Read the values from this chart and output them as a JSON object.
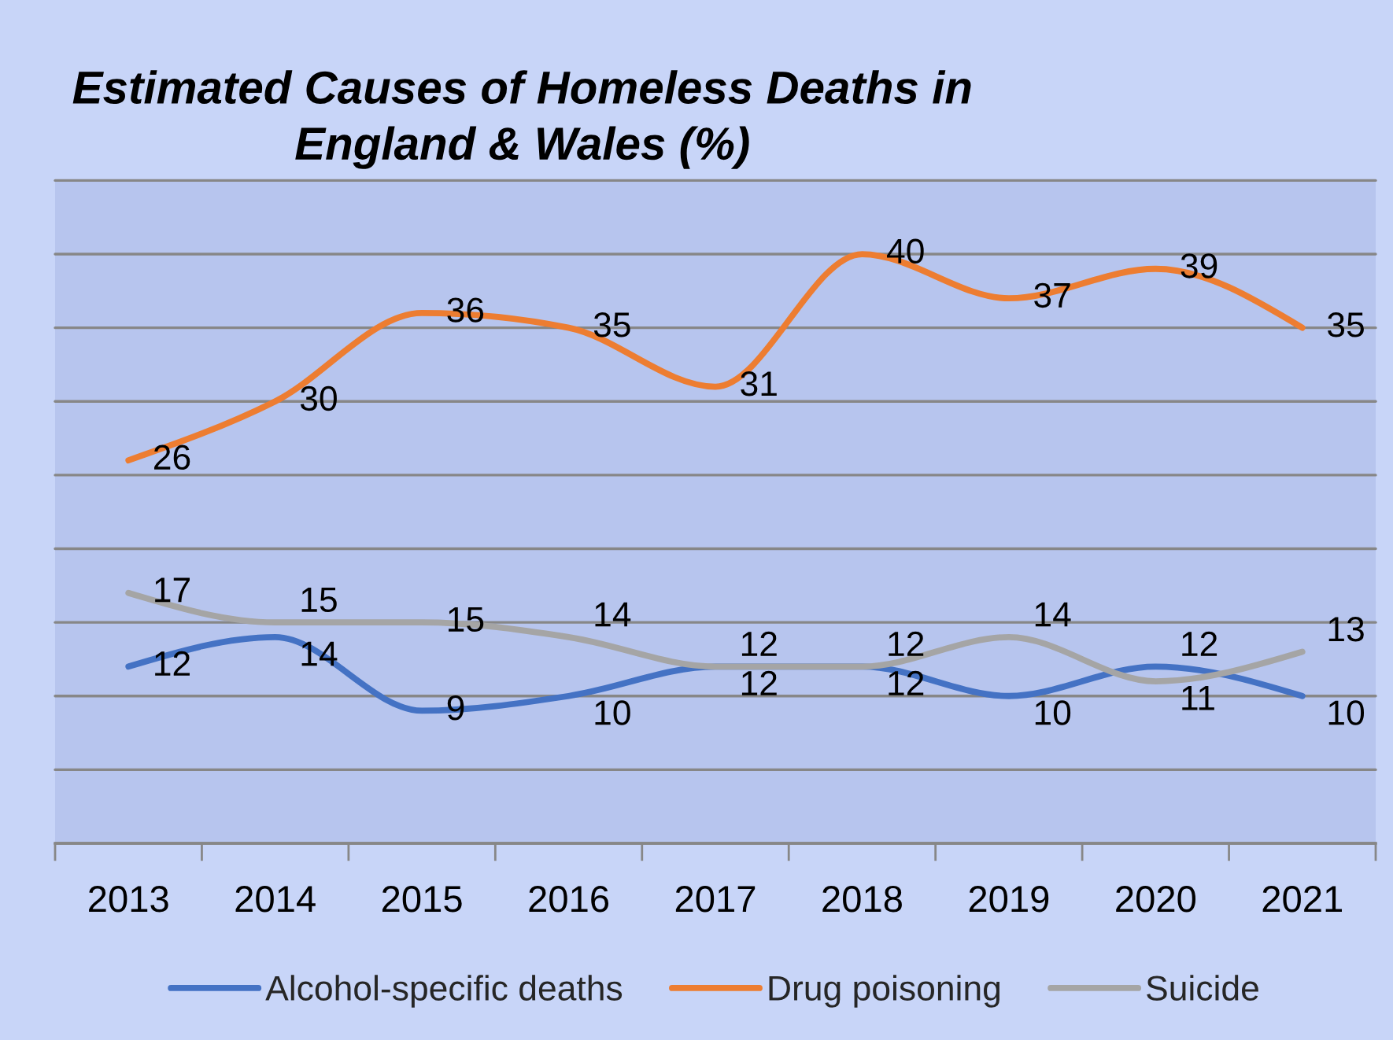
{
  "chart_data": {
    "type": "line",
    "title": "Estimated Causes of Homeless Deaths in England & Wales (%)",
    "categories": [
      "2013",
      "2014",
      "2015",
      "2016",
      "2017",
      "2018",
      "2019",
      "2020",
      "2021"
    ],
    "series": [
      {
        "name": "Alcohol-specific deaths",
        "color": "#4472c4",
        "values": [
          12,
          14,
          9,
          10,
          12,
          12,
          10,
          12,
          10
        ]
      },
      {
        "name": "Drug poisoning",
        "color": "#ed7d31",
        "values": [
          26,
          30,
          36,
          35,
          31,
          40,
          37,
          39,
          35
        ]
      },
      {
        "name": "Suicide",
        "color": "#a5a5a5",
        "values": [
          17,
          15,
          15,
          14,
          12,
          12,
          14,
          11,
          13
        ]
      }
    ],
    "ylim": [
      0,
      45
    ],
    "yticks": [
      {
        "value": 0,
        "label": null
      },
      {
        "value": 5,
        "label": null
      },
      {
        "value": 10,
        "label": null
      },
      {
        "value": 15,
        "label": null
      },
      {
        "value": 20,
        "label": null
      },
      {
        "value": 25,
        "label": null
      },
      {
        "value": 30,
        "label": null
      },
      {
        "value": 35,
        "label": null
      },
      {
        "value": 40,
        "label": null
      },
      {
        "value": 45,
        "label": null
      }
    ],
    "grid": "y",
    "legend": "bottom",
    "tick_labels": "x",
    "data_labels": true,
    "line_style": "solid"
  }
}
